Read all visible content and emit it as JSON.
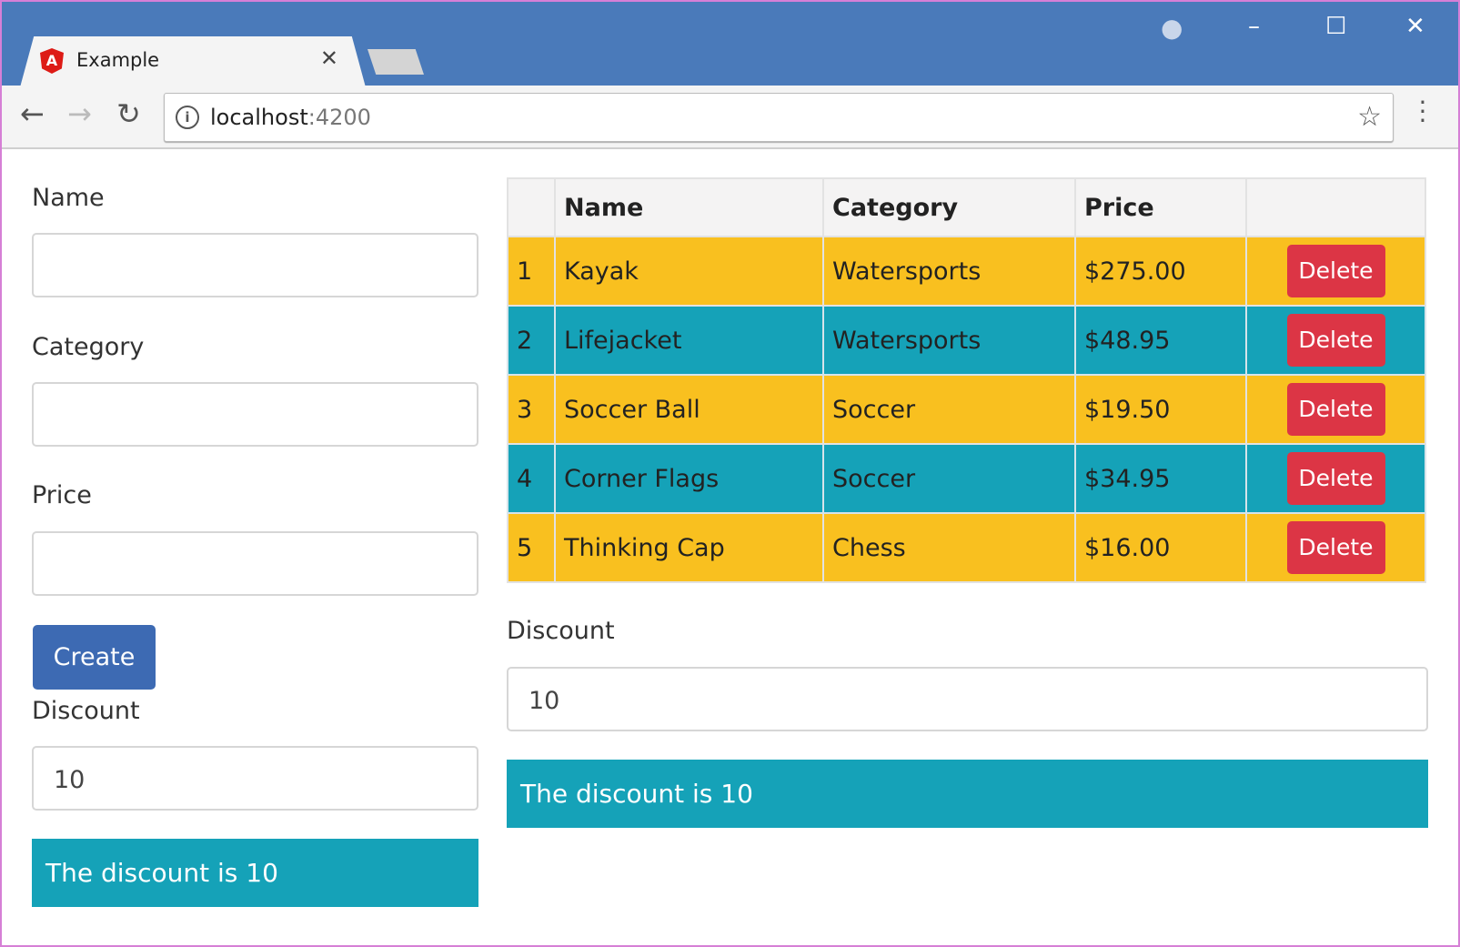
{
  "browser": {
    "tab_title": "Example",
    "url_host": "localhost",
    "url_port": ":4200",
    "tab_icon": "angular-logo",
    "icons": [
      "account-icon",
      "minimize-icon",
      "maximize-icon",
      "close-icon",
      "back-icon",
      "forward-icon",
      "reload-icon",
      "info-icon",
      "star-icon",
      "menu-icon"
    ]
  },
  "form": {
    "name_label": "Name",
    "name_value": "",
    "category_label": "Category",
    "category_value": "",
    "price_label": "Price",
    "price_value": "",
    "create_label": "Create",
    "discount_label": "Discount",
    "discount_value": "10",
    "discount_message": "The discount is 10"
  },
  "table": {
    "headers": [
      "",
      "Name",
      "Category",
      "Price",
      ""
    ],
    "rows": [
      {
        "index": "1",
        "name": "Kayak",
        "category": "Watersports",
        "price": "$275.00",
        "action": "Delete"
      },
      {
        "index": "2",
        "name": "Lifejacket",
        "category": "Watersports",
        "price": "$48.95",
        "action": "Delete"
      },
      {
        "index": "3",
        "name": "Soccer Ball",
        "category": "Soccer",
        "price": "$19.50",
        "action": "Delete"
      },
      {
        "index": "4",
        "name": "Corner Flags",
        "category": "Soccer",
        "price": "$34.95",
        "action": "Delete"
      },
      {
        "index": "5",
        "name": "Thinking Cap",
        "category": "Chess",
        "price": "$16.00",
        "action": "Delete"
      }
    ]
  },
  "right_discount": {
    "label": "Discount",
    "value": "10",
    "message": "The discount is 10"
  },
  "colors": {
    "titlebar": "#4a7aba",
    "row_odd": "#f9c01f",
    "row_even": "#15a2b8",
    "delete": "#dc3545",
    "create": "#3d6ab3",
    "alert": "#15a2b8"
  }
}
